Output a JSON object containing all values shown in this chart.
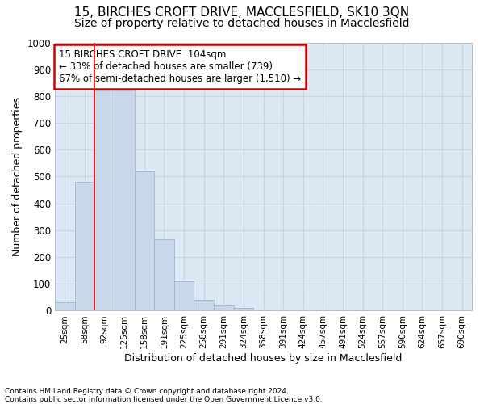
{
  "title": "15, BIRCHES CROFT DRIVE, MACCLESFIELD, SK10 3QN",
  "subtitle": "Size of property relative to detached houses in Macclesfield",
  "xlabel": "Distribution of detached houses by size in Macclesfield",
  "ylabel": "Number of detached properties",
  "footnote1": "Contains HM Land Registry data © Crown copyright and database right 2024.",
  "footnote2": "Contains public sector information licensed under the Open Government Licence v3.0.",
  "bin_labels": [
    "25sqm",
    "58sqm",
    "92sqm",
    "125sqm",
    "158sqm",
    "191sqm",
    "225sqm",
    "258sqm",
    "291sqm",
    "324sqm",
    "358sqm",
    "391sqm",
    "424sqm",
    "457sqm",
    "491sqm",
    "524sqm",
    "557sqm",
    "590sqm",
    "624sqm",
    "657sqm",
    "690sqm"
  ],
  "bar_values": [
    30,
    480,
    820,
    820,
    520,
    265,
    110,
    40,
    20,
    10,
    0,
    0,
    0,
    0,
    0,
    0,
    0,
    0,
    0,
    0,
    0
  ],
  "bar_color": "#c8d8ea",
  "bar_edgecolor": "#a0b8d0",
  "red_line_x": 2.0,
  "annotation_text": "15 BIRCHES CROFT DRIVE: 104sqm\n← 33% of detached houses are smaller (739)\n67% of semi-detached houses are larger (1,510) →",
  "annotation_box_color": "#ffffff",
  "annotation_box_edgecolor": "#cc0000",
  "ylim": [
    0,
    1000
  ],
  "yticks": [
    0,
    100,
    200,
    300,
    400,
    500,
    600,
    700,
    800,
    900,
    1000
  ],
  "grid_color": "#c8d4e0",
  "background_color": "#dce8f4",
  "title_fontsize": 11,
  "subtitle_fontsize": 10,
  "xlabel_fontsize": 9,
  "ylabel_fontsize": 9,
  "annotation_fontsize": 8.5
}
